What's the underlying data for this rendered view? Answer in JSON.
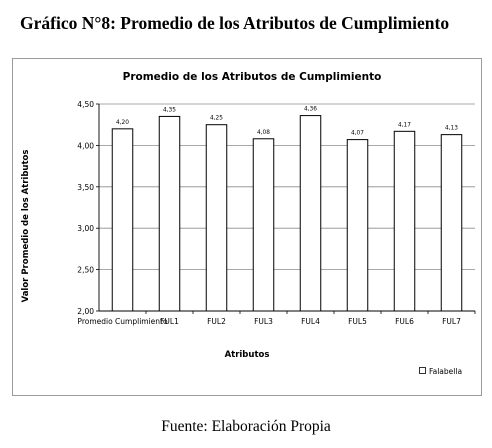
{
  "document": {
    "title": "Gráfico N°8: Promedio de los Atributos de Cumplimiento",
    "source": "Fuente: Elaboración Propia"
  },
  "chart_data": {
    "type": "bar",
    "title": "Promedio de los Atributos de Cumplimiento",
    "xlabel": "Atributos",
    "ylabel": "Valor Promedio de los Atributos",
    "categories": [
      "Promedio Cumplimiento",
      "FUL1",
      "FUL2",
      "FUL3",
      "FUL4",
      "FUL5",
      "FUL6",
      "FUL7"
    ],
    "series": [
      {
        "name": "Falabella",
        "values": [
          4.2,
          4.35,
          4.25,
          4.08,
          4.36,
          4.07,
          4.17,
          4.13
        ],
        "labels": [
          "4,20",
          "4,35",
          "4,25",
          "4,08",
          "4,36",
          "4,07",
          "4,17",
          "4,13"
        ]
      }
    ],
    "ylim": [
      2.0,
      4.5
    ],
    "yticks": [
      2.0,
      2.5,
      3.0,
      3.5,
      4.0,
      4.5
    ],
    "ytick_labels": [
      "2,00",
      "2,50",
      "3,00",
      "3,50",
      "4,00",
      "4,50"
    ],
    "grid": true,
    "legend_position": "bottom-right",
    "colors": {
      "bar_fill": "#ffffff",
      "bar_stroke": "#000000",
      "grid": "#8c8c8c"
    }
  }
}
